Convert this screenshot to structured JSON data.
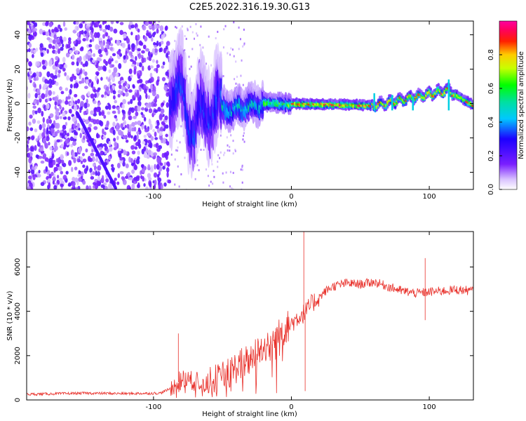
{
  "title": "C2E5.2022.316.19.30.G13",
  "colors": {
    "snr_line": "#e8302a",
    "axis": "#000000"
  },
  "chart_data": [
    {
      "type": "heatmap",
      "xlabel": "Height of straight line (km)",
      "ylabel": "Frequency (Hz)",
      "xlim": [
        -192,
        132
      ],
      "ylim": [
        -50,
        48
      ],
      "xticks": [
        -100,
        0,
        100
      ],
      "yticks": [
        -40,
        -20,
        0,
        20,
        40
      ],
      "colorbar": {
        "label": "Normalized spectral amplitude",
        "range": [
          0,
          1
        ],
        "ticks": [
          0.0,
          0.2,
          0.4,
          0.6,
          0.8
        ],
        "colormap": "rainbow (white-violet-blue-cyan-green-yellow-red-magenta)"
      },
      "segments": [
        {
          "x_range": [
            -192,
            -88
          ],
          "pattern": "noise",
          "level": 0.12
        },
        {
          "x_range": [
            -88,
            -50
          ],
          "pattern": "broad oscillation around 0 Hz",
          "level": 0.3
        },
        {
          "x_range": [
            -50,
            0
          ],
          "pattern": "narrowing band near 0 Hz",
          "level": 0.55
        },
        {
          "x_range": [
            0,
            132
          ],
          "pattern": "narrow band at 0 Hz",
          "level": 0.9
        }
      ],
      "band_center_hz": [
        {
          "x": -85,
          "y": 12
        },
        {
          "x": -78,
          "y": 4
        },
        {
          "x": -70,
          "y": -12
        },
        {
          "x": -60,
          "y": 2
        },
        {
          "x": -50,
          "y": -3
        },
        {
          "x": -40,
          "y": -2
        },
        {
          "x": -20,
          "y": 1
        },
        {
          "x": 0,
          "y": 0
        },
        {
          "x": 60,
          "y": -1
        },
        {
          "x": 114,
          "y": 8
        },
        {
          "x": 132,
          "y": -1
        }
      ]
    },
    {
      "type": "line",
      "xlabel": "Height of straight line (km)",
      "ylabel": "SNR (10 * v/v)",
      "xlim": [
        -192,
        132
      ],
      "ylim": [
        0,
        7600
      ],
      "xticks": [
        -100,
        0,
        100
      ],
      "yticks": [
        0,
        2000,
        4000,
        6000
      ],
      "series": [
        {
          "x": [
            -192,
            -150,
            -120,
            -95,
            -88,
            -80,
            -70,
            -60,
            -50,
            -40,
            -30,
            -20,
            -10,
            0,
            5,
            10,
            15,
            20,
            25,
            30,
            40,
            50,
            60,
            70,
            80,
            90,
            100,
            110,
            120,
            132
          ],
          "y": [
            250,
            300,
            280,
            300,
            500,
            900,
            800,
            700,
            900,
            1400,
            1800,
            2300,
            2800,
            3400,
            3700,
            3900,
            4300,
            4600,
            4900,
            5100,
            5250,
            5200,
            5300,
            5100,
            4900,
            4800,
            4850,
            4900,
            4950,
            4900
          ],
          "color": "#e8302a"
        }
      ],
      "spikes": [
        {
          "x": 9,
          "y": 7600
        },
        {
          "x": 10,
          "y": 400
        },
        {
          "x": 97,
          "y": 6400
        },
        {
          "x": 97,
          "y": 3600
        },
        {
          "x": -82,
          "y": 3000
        }
      ]
    }
  ]
}
